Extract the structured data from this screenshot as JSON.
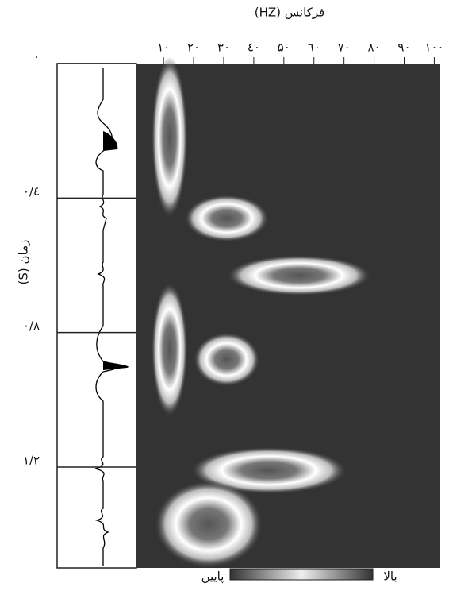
{
  "chart_data": {
    "type": "spectrogram",
    "title": "(HZ) فرکانس",
    "y_label": "(S) زمان",
    "xlim": [
      1,
      102
    ],
    "ylim": [
      0,
      1.5
    ],
    "xticks": [
      {
        "value": 10,
        "label": "۱۰"
      },
      {
        "value": 20,
        "label": "۲۰"
      },
      {
        "value": 30,
        "label": "۳۰"
      },
      {
        "value": 40,
        "label": "٤۰"
      },
      {
        "value": 50,
        "label": "۵۰"
      },
      {
        "value": 60,
        "label": "٦۰"
      },
      {
        "value": 70,
        "label": "۷۰"
      },
      {
        "value": 80,
        "label": "۸۰"
      },
      {
        "value": 90,
        "label": "۹۰"
      },
      {
        "value": 100,
        "label": "۱۰۰"
      }
    ],
    "yticks": [
      {
        "value": 0,
        "label": "۰"
      },
      {
        "value": 0.4,
        "label": "۰/٤"
      },
      {
        "value": 0.8,
        "label": "۰/۸"
      },
      {
        "value": 1.2,
        "label": "۱/۲"
      }
    ],
    "events": [
      {
        "time": 0.22,
        "frequency": 12,
        "time_width": 0.24,
        "freq_width": 6
      },
      {
        "time": 0.46,
        "frequency": 31,
        "time_width": 0.07,
        "freq_width": 14
      },
      {
        "time": 0.63,
        "frequency": 55,
        "time_width": 0.06,
        "freq_width": 24
      },
      {
        "time": 0.85,
        "frequency": 12,
        "time_width": 0.2,
        "freq_width": 6
      },
      {
        "time": 0.88,
        "frequency": 31,
        "time_width": 0.08,
        "freq_width": 11
      },
      {
        "time": 1.21,
        "frequency": 45,
        "time_width": 0.07,
        "freq_width": 26
      },
      {
        "time": 1.37,
        "frequency": 25,
        "time_width": 0.13,
        "freq_width": 18
      }
    ],
    "colorbar": {
      "low": "پایین",
      "high": "بالا"
    }
  }
}
